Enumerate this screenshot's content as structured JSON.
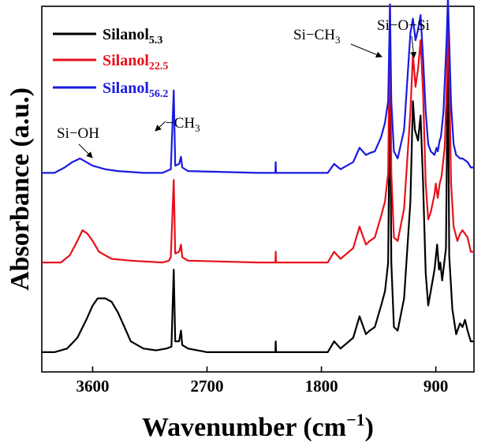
{
  "chart_data": {
    "type": "line",
    "title": "",
    "xlabel_main": "Wavenumber (cm",
    "xlabel_sup": "−1",
    "xlabel_close": ")",
    "ylabel": "Absorbance (a.u.)",
    "xlim": [
      4000,
      600
    ],
    "x_reversed": true,
    "y_ticks_shown": false,
    "x_ticks": [
      3600,
      2700,
      1800,
      900
    ],
    "x_tick_labels": [
      "3600",
      "2700",
      "1800",
      "900"
    ],
    "legend_position": "top-left",
    "series": [
      {
        "name": "Silanol",
        "sub": "5.3",
        "color": "#000000",
        "baseline": 0.13,
        "points": [
          [
            4000,
            0.13
          ],
          [
            3900,
            0.13
          ],
          [
            3800,
            0.14
          ],
          [
            3720,
            0.17
          ],
          [
            3650,
            0.22
          ],
          [
            3600,
            0.26
          ],
          [
            3560,
            0.28
          ],
          [
            3500,
            0.28
          ],
          [
            3450,
            0.27
          ],
          [
            3400,
            0.24
          ],
          [
            3350,
            0.2
          ],
          [
            3300,
            0.16
          ],
          [
            3200,
            0.14
          ],
          [
            3100,
            0.135
          ],
          [
            3020,
            0.14
          ],
          [
            2980,
            0.145
          ],
          [
            2962,
            0.36
          ],
          [
            2950,
            0.16
          ],
          [
            2920,
            0.16
          ],
          [
            2905,
            0.19
          ],
          [
            2895,
            0.15
          ],
          [
            2850,
            0.14
          ],
          [
            2700,
            0.13
          ],
          [
            2300,
            0.13
          ],
          [
            2162,
            0.13
          ],
          [
            2160,
            0.16
          ],
          [
            2157,
            0.13
          ],
          [
            2000,
            0.13
          ],
          [
            1750,
            0.13
          ],
          [
            1700,
            0.16
          ],
          [
            1650,
            0.14
          ],
          [
            1550,
            0.17
          ],
          [
            1500,
            0.23
          ],
          [
            1450,
            0.18
          ],
          [
            1420,
            0.19
          ],
          [
            1380,
            0.2
          ],
          [
            1330,
            0.26
          ],
          [
            1300,
            0.3
          ],
          [
            1275,
            0.38
          ],
          [
            1261,
            0.9
          ],
          [
            1250,
            0.38
          ],
          [
            1230,
            0.2
          ],
          [
            1200,
            0.19
          ],
          [
            1150,
            0.28
          ],
          [
            1100,
            0.55
          ],
          [
            1080,
            0.83
          ],
          [
            1065,
            0.75
          ],
          [
            1040,
            0.72
          ],
          [
            1020,
            0.79
          ],
          [
            1000,
            0.6
          ],
          [
            980,
            0.35
          ],
          [
            960,
            0.26
          ],
          [
            940,
            0.3
          ],
          [
            910,
            0.36
          ],
          [
            890,
            0.43
          ],
          [
            875,
            0.36
          ],
          [
            865,
            0.38
          ],
          [
            850,
            0.33
          ],
          [
            820,
            0.42
          ],
          [
            805,
            0.98
          ],
          [
            795,
            0.4
          ],
          [
            770,
            0.25
          ],
          [
            740,
            0.18
          ],
          [
            710,
            0.21
          ],
          [
            690,
            0.2
          ],
          [
            670,
            0.22
          ],
          [
            650,
            0.19
          ],
          [
            625,
            0.16
          ],
          [
            600,
            0.16
          ]
        ]
      },
      {
        "name": "Silanol",
        "sub": "22.5",
        "color": "#e8101a",
        "baseline": 0.38,
        "points": [
          [
            4000,
            0.38
          ],
          [
            3850,
            0.38
          ],
          [
            3780,
            0.4
          ],
          [
            3720,
            0.44
          ],
          [
            3680,
            0.47
          ],
          [
            3640,
            0.46
          ],
          [
            3600,
            0.44
          ],
          [
            3550,
            0.41
          ],
          [
            3450,
            0.39
          ],
          [
            3300,
            0.385
          ],
          [
            3050,
            0.38
          ],
          [
            3000,
            0.385
          ],
          [
            2985,
            0.395
          ],
          [
            2962,
            0.61
          ],
          [
            2950,
            0.405
          ],
          [
            2920,
            0.41
          ],
          [
            2905,
            0.43
          ],
          [
            2895,
            0.395
          ],
          [
            2850,
            0.385
          ],
          [
            2300,
            0.38
          ],
          [
            2162,
            0.38
          ],
          [
            2160,
            0.41
          ],
          [
            2157,
            0.38
          ],
          [
            2000,
            0.38
          ],
          [
            1750,
            0.38
          ],
          [
            1700,
            0.41
          ],
          [
            1650,
            0.39
          ],
          [
            1550,
            0.42
          ],
          [
            1500,
            0.48
          ],
          [
            1450,
            0.43
          ],
          [
            1420,
            0.44
          ],
          [
            1380,
            0.45
          ],
          [
            1330,
            0.51
          ],
          [
            1300,
            0.55
          ],
          [
            1275,
            0.63
          ],
          [
            1261,
            1.1
          ],
          [
            1250,
            0.63
          ],
          [
            1230,
            0.45
          ],
          [
            1200,
            0.44
          ],
          [
            1150,
            0.53
          ],
          [
            1100,
            0.8
          ],
          [
            1080,
            0.96
          ],
          [
            1060,
            0.87
          ],
          [
            1040,
            0.92
          ],
          [
            1020,
            1.0
          ],
          [
            1000,
            0.85
          ],
          [
            980,
            0.6
          ],
          [
            960,
            0.5
          ],
          [
            940,
            0.52
          ],
          [
            910,
            0.57
          ],
          [
            900,
            0.6
          ],
          [
            885,
            0.56
          ],
          [
            870,
            0.6
          ],
          [
            855,
            0.62
          ],
          [
            830,
            0.7
          ],
          [
            812,
            0.9
          ],
          [
            805,
            1.08
          ],
          [
            795,
            0.9
          ],
          [
            780,
            0.6
          ],
          [
            760,
            0.48
          ],
          [
            730,
            0.44
          ],
          [
            710,
            0.46
          ],
          [
            690,
            0.47
          ],
          [
            670,
            0.46
          ],
          [
            650,
            0.45
          ],
          [
            625,
            0.41
          ],
          [
            600,
            0.41
          ]
        ]
      },
      {
        "name": "Silanol",
        "sub": "56.2",
        "color": "#1a1ae0",
        "baseline": 0.63,
        "points": [
          [
            4000,
            0.63
          ],
          [
            3900,
            0.63
          ],
          [
            3820,
            0.645
          ],
          [
            3760,
            0.66
          ],
          [
            3700,
            0.67
          ],
          [
            3650,
            0.66
          ],
          [
            3600,
            0.65
          ],
          [
            3500,
            0.64
          ],
          [
            3400,
            0.635
          ],
          [
            3200,
            0.63
          ],
          [
            3050,
            0.63
          ],
          [
            2985,
            0.64
          ],
          [
            2962,
            0.86
          ],
          [
            2950,
            0.65
          ],
          [
            2920,
            0.655
          ],
          [
            2905,
            0.675
          ],
          [
            2895,
            0.645
          ],
          [
            2850,
            0.635
          ],
          [
            2300,
            0.63
          ],
          [
            2162,
            0.63
          ],
          [
            2160,
            0.66
          ],
          [
            2157,
            0.63
          ],
          [
            2000,
            0.63
          ],
          [
            1750,
            0.63
          ],
          [
            1700,
            0.655
          ],
          [
            1650,
            0.64
          ],
          [
            1550,
            0.66
          ],
          [
            1500,
            0.7
          ],
          [
            1450,
            0.68
          ],
          [
            1420,
            0.685
          ],
          [
            1380,
            0.69
          ],
          [
            1330,
            0.73
          ],
          [
            1300,
            0.77
          ],
          [
            1275,
            0.83
          ],
          [
            1261,
            1.1
          ],
          [
            1250,
            0.83
          ],
          [
            1230,
            0.69
          ],
          [
            1200,
            0.67
          ],
          [
            1150,
            0.75
          ],
          [
            1100,
            1.02
          ],
          [
            1080,
            1.06
          ],
          [
            1060,
            1.0
          ],
          [
            1040,
            1.03
          ],
          [
            1020,
            1.07
          ],
          [
            1000,
            0.95
          ],
          [
            980,
            0.8
          ],
          [
            960,
            0.71
          ],
          [
            940,
            0.69
          ],
          [
            910,
            0.68
          ],
          [
            895,
            0.7
          ],
          [
            885,
            0.69
          ],
          [
            870,
            0.72
          ],
          [
            860,
            0.73
          ],
          [
            840,
            0.8
          ],
          [
            815,
            1.0
          ],
          [
            805,
            1.12
          ],
          [
            795,
            1.0
          ],
          [
            780,
            0.82
          ],
          [
            760,
            0.71
          ],
          [
            740,
            0.68
          ],
          [
            710,
            0.67
          ],
          [
            690,
            0.67
          ],
          [
            670,
            0.665
          ],
          [
            650,
            0.66
          ],
          [
            625,
            0.645
          ],
          [
            600,
            0.645
          ]
        ]
      }
    ],
    "annotations": [
      {
        "text": "Si−OH",
        "sub": ""
      },
      {
        "text": "−CH",
        "sub": "3"
      },
      {
        "text": "Si−CH",
        "sub": "3"
      },
      {
        "text": "Si−O−Si",
        "sub": ""
      }
    ]
  }
}
